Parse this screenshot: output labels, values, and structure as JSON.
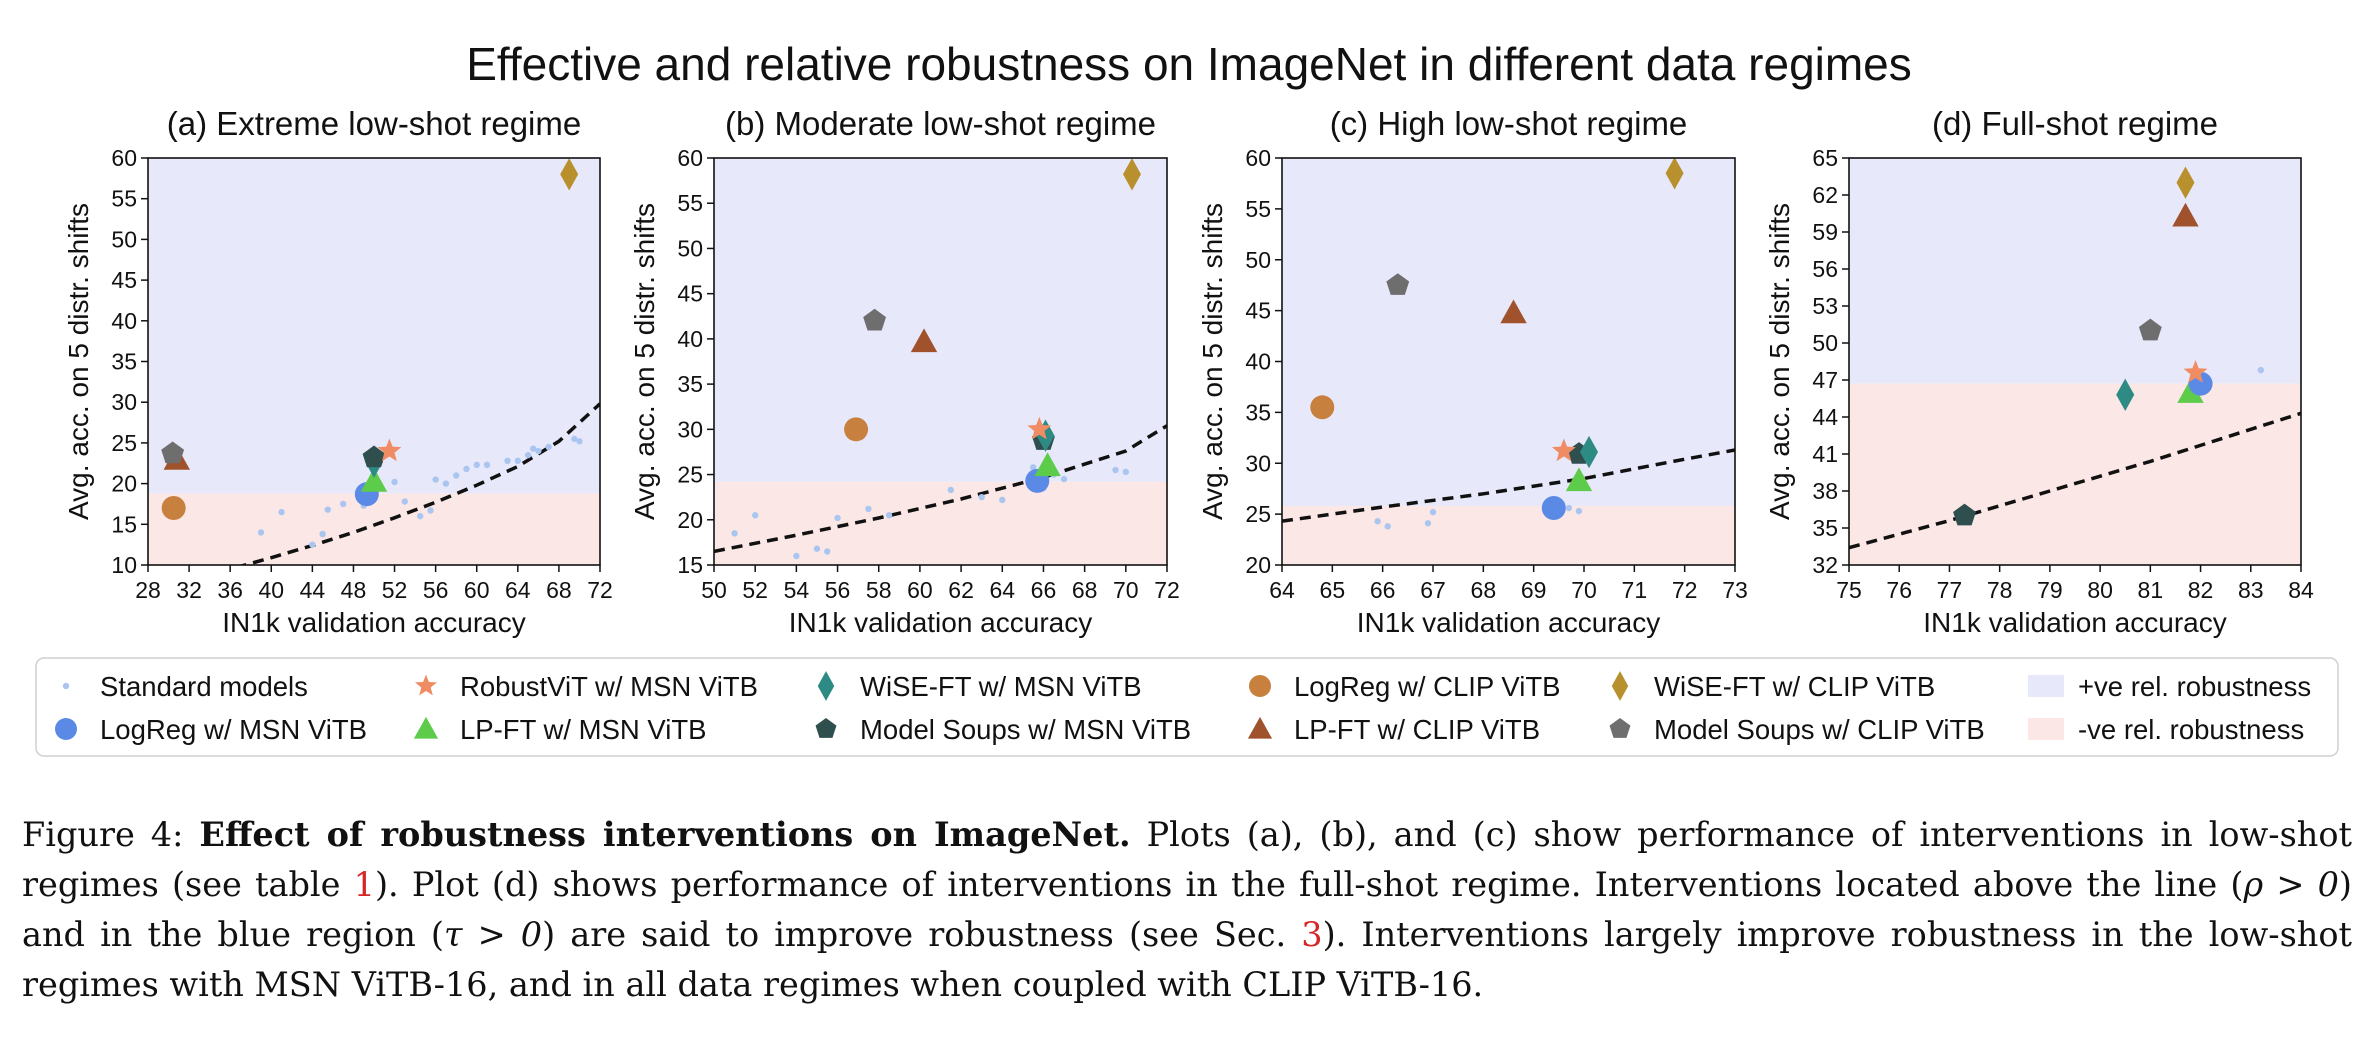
{
  "figure_title": "Effective and relative robustness on ImageNet in different data regimes",
  "chart_data": [
    {
      "type": "scatter",
      "title": "(a) Extreme low-shot regime",
      "xlabel": "IN1k validation accuracy",
      "ylabel": "Avg. acc. on 5 distr. shifts",
      "xlim": [
        28,
        72
      ],
      "ylim": [
        10,
        60
      ],
      "xticks": [
        28,
        32,
        36,
        40,
        44,
        48,
        52,
        56,
        60,
        64,
        68,
        72
      ],
      "yticks": [
        10,
        15,
        20,
        25,
        30,
        35,
        40,
        45,
        50,
        55,
        60
      ],
      "baseline_y": 18.8,
      "fit_curve": [
        [
          28,
          7.2
        ],
        [
          32,
          8.3
        ],
        [
          36,
          9.5
        ],
        [
          40,
          10.9
        ],
        [
          44,
          12.4
        ],
        [
          48,
          14.0
        ],
        [
          52,
          15.8
        ],
        [
          56,
          17.7
        ],
        [
          60,
          19.8
        ],
        [
          64,
          22.1
        ],
        [
          68,
          25.2
        ],
        [
          72,
          29.8
        ]
      ],
      "standard_models": [
        [
          39,
          14
        ],
        [
          41,
          16.5
        ],
        [
          44,
          12.5
        ],
        [
          45,
          13.8
        ],
        [
          45.5,
          16.8
        ],
        [
          47,
          17.5
        ],
        [
          49,
          17.3
        ],
        [
          50.5,
          19.5
        ],
        [
          52,
          20.2
        ],
        [
          53,
          17.8
        ],
        [
          54.5,
          16
        ],
        [
          55.5,
          16.7
        ],
        [
          56,
          20.5
        ],
        [
          57,
          20
        ],
        [
          58,
          21
        ],
        [
          59,
          21.8
        ],
        [
          60,
          22.3
        ],
        [
          61,
          22.3
        ],
        [
          63,
          22.8
        ],
        [
          64,
          22.8
        ],
        [
          65,
          23.5
        ],
        [
          65.5,
          24.3
        ],
        [
          66,
          24
        ],
        [
          67,
          24.5
        ],
        [
          69.5,
          25.5
        ],
        [
          70,
          25.2
        ]
      ],
      "interventions": [
        {
          "series": "LogReg w/ MSN ViTB",
          "x": 49.3,
          "y": 18.7
        },
        {
          "series": "LP-FT w/ MSN ViTB",
          "x": 50.0,
          "y": 20.3
        },
        {
          "series": "WiSE-FT w/ MSN ViTB",
          "x": 50.0,
          "y": 22.7
        },
        {
          "series": "Model Soups w/ MSN ViTB",
          "x": 50.0,
          "y": 23.2
        },
        {
          "series": "RobustViT w/ MSN ViTB",
          "x": 51.5,
          "y": 24.0
        },
        {
          "series": "LogReg w/ CLIP ViTB",
          "x": 30.5,
          "y": 17.0
        },
        {
          "series": "LP-FT w/ CLIP ViTB",
          "x": 30.8,
          "y": 23.0
        },
        {
          "series": "Model Soups w/ CLIP ViTB",
          "x": 30.4,
          "y": 23.7
        },
        {
          "series": "WiSE-FT w/ CLIP ViTB",
          "x": 69.0,
          "y": 58.0
        }
      ]
    },
    {
      "type": "scatter",
      "title": "(b) Moderate low-shot regime",
      "xlabel": "IN1k validation accuracy",
      "ylabel": "Avg. acc. on 5 distr. shifts",
      "xlim": [
        50,
        72
      ],
      "ylim": [
        15,
        60
      ],
      "xticks": [
        50,
        52,
        54,
        56,
        58,
        60,
        62,
        64,
        66,
        68,
        70,
        72
      ],
      "yticks": [
        15,
        20,
        25,
        30,
        35,
        40,
        45,
        50,
        55,
        60
      ],
      "baseline_y": 24.2,
      "fit_curve": [
        [
          50,
          16.5
        ],
        [
          54,
          18.3
        ],
        [
          58,
          20.2
        ],
        [
          62,
          22.3
        ],
        [
          66,
          24.7
        ],
        [
          70,
          27.6
        ],
        [
          72,
          30.4
        ]
      ],
      "standard_models": [
        [
          51,
          18.5
        ],
        [
          52,
          20.5
        ],
        [
          54,
          16
        ],
        [
          55,
          16.8
        ],
        [
          55.5,
          16.5
        ],
        [
          56,
          20.2
        ],
        [
          57.5,
          21.2
        ],
        [
          58.5,
          20.5
        ],
        [
          61.5,
          23.3
        ],
        [
          63,
          22.5
        ],
        [
          64,
          22.2
        ],
        [
          65.5,
          25.8
        ],
        [
          66,
          23.5
        ],
        [
          66.5,
          25
        ],
        [
          67,
          24.5
        ],
        [
          69.5,
          25.5
        ],
        [
          70,
          25.3
        ]
      ],
      "interventions": [
        {
          "series": "LogReg w/ MSN ViTB",
          "x": 65.7,
          "y": 24.3
        },
        {
          "series": "LP-FT w/ MSN ViTB",
          "x": 66.2,
          "y": 26.0
        },
        {
          "series": "Model Soups w/ MSN ViTB",
          "x": 66.0,
          "y": 28.8
        },
        {
          "series": "WiSE-FT w/ MSN ViTB",
          "x": 66.1,
          "y": 29.3
        },
        {
          "series": "RobustViT w/ MSN ViTB",
          "x": 65.8,
          "y": 30.0
        },
        {
          "series": "LogReg w/ CLIP ViTB",
          "x": 56.9,
          "y": 30.0
        },
        {
          "series": "Model Soups w/ CLIP ViTB",
          "x": 57.8,
          "y": 42.0
        },
        {
          "series": "LP-FT w/ CLIP ViTB",
          "x": 60.2,
          "y": 39.7
        },
        {
          "series": "WiSE-FT w/ CLIP ViTB",
          "x": 70.3,
          "y": 58.2
        }
      ]
    },
    {
      "type": "scatter",
      "title": "(c) High low-shot regime",
      "xlabel": "IN1k validation accuracy",
      "ylabel": "Avg. acc. on 5 distr. shifts",
      "xlim": [
        64,
        73
      ],
      "ylim": [
        20,
        60
      ],
      "xticks": [
        64,
        65,
        66,
        67,
        68,
        69,
        70,
        71,
        72,
        73
      ],
      "yticks": [
        20,
        25,
        30,
        35,
        40,
        45,
        50,
        55,
        60
      ],
      "baseline_y": 25.8,
      "fit_curve": [
        [
          64,
          24.3
        ],
        [
          66,
          25.7
        ],
        [
          68,
          27.0
        ],
        [
          70,
          28.5
        ],
        [
          72,
          30.4
        ],
        [
          73,
          31.3
        ]
      ],
      "standard_models": [
        [
          65.9,
          24.3
        ],
        [
          66.1,
          23.8
        ],
        [
          66.9,
          24.1
        ],
        [
          67,
          25.2
        ],
        [
          69.9,
          25.3
        ],
        [
          69.7,
          25.6
        ]
      ],
      "interventions": [
        {
          "series": "LogReg w/ MSN ViTB",
          "x": 69.4,
          "y": 25.6
        },
        {
          "series": "LP-FT w/ MSN ViTB",
          "x": 69.9,
          "y": 28.3
        },
        {
          "series": "Model Soups w/ MSN ViTB",
          "x": 69.9,
          "y": 30.9
        },
        {
          "series": "WiSE-FT w/ MSN ViTB",
          "x": 70.1,
          "y": 31.1
        },
        {
          "series": "RobustViT w/ MSN ViTB",
          "x": 69.6,
          "y": 31.2
        },
        {
          "series": "LogReg w/ CLIP ViTB",
          "x": 64.8,
          "y": 35.5
        },
        {
          "series": "LP-FT w/ CLIP ViTB",
          "x": 68.6,
          "y": 44.8
        },
        {
          "series": "Model Soups w/ CLIP ViTB",
          "x": 66.3,
          "y": 47.5
        },
        {
          "series": "WiSE-FT w/ CLIP ViTB",
          "x": 71.8,
          "y": 58.5
        }
      ]
    },
    {
      "type": "scatter",
      "title": "(d) Full-shot regime",
      "xlabel": "IN1k validation accuracy",
      "ylabel": "Avg. acc. on 5 distr. shifts",
      "xlim": [
        75,
        84
      ],
      "ylim": [
        32,
        65
      ],
      "xticks": [
        75,
        76,
        77,
        78,
        79,
        80,
        81,
        82,
        83,
        84
      ],
      "yticks": [
        32,
        35,
        38,
        41,
        44,
        47,
        50,
        53,
        56,
        59,
        62,
        65
      ],
      "baseline_y": 46.7,
      "fit_curve": [
        [
          75,
          33.4
        ],
        [
          77,
          35.6
        ],
        [
          79,
          38.0
        ],
        [
          81,
          40.4
        ],
        [
          83,
          43.0
        ],
        [
          84,
          44.3
        ]
      ],
      "standard_models": [
        [
          83.2,
          47.8
        ]
      ],
      "interventions": [
        {
          "series": "Model Soups w/ MSN ViTB",
          "x": 77.3,
          "y": 36.0
        },
        {
          "series": "WiSE-FT w/ MSN ViTB",
          "x": 80.5,
          "y": 45.8
        },
        {
          "series": "LP-FT w/ MSN ViTB",
          "x": 81.8,
          "y": 46.0
        },
        {
          "series": "LogReg w/ MSN ViTB",
          "x": 82.0,
          "y": 46.7
        },
        {
          "series": "RobustViT w/ MSN ViTB",
          "x": 81.9,
          "y": 47.6
        },
        {
          "series": "Model Soups w/ CLIP ViTB",
          "x": 81.0,
          "y": 51.0
        },
        {
          "series": "LP-FT w/ CLIP ViTB",
          "x": 81.7,
          "y": 60.3
        },
        {
          "series": "WiSE-FT w/ CLIP ViTB",
          "x": 81.7,
          "y": 63.0
        }
      ]
    }
  ],
  "series_styles": {
    "Standard models": {
      "shape": "dot",
      "color": "#aac6f0"
    },
    "LogReg w/ MSN ViTB": {
      "shape": "circle",
      "color": "#5b8ae6"
    },
    "RobustViT w/ MSN ViTB": {
      "shape": "star",
      "color": "#f08c64"
    },
    "LP-FT w/ MSN ViTB": {
      "shape": "triangle",
      "color": "#5dcc4b"
    },
    "WiSE-FT w/ MSN ViTB": {
      "shape": "diamond",
      "color": "#2e8b84"
    },
    "Model Soups w/ MSN ViTB": {
      "shape": "pentagon",
      "color": "#2f4f4f"
    },
    "LogReg w/ CLIP ViTB": {
      "shape": "circle",
      "color": "#c8803e"
    },
    "LP-FT w/ CLIP ViTB": {
      "shape": "triangle",
      "color": "#a0522d"
    },
    "WiSE-FT w/ CLIP ViTB": {
      "shape": "diamond",
      "color": "#b8912e"
    },
    "Model Soups w/ CLIP ViTB": {
      "shape": "pentagon",
      "color": "#6e6e6e"
    }
  },
  "region_colors": {
    "positive": "#e8e8fb",
    "negative": "#fbe7e5"
  },
  "legend": [
    {
      "label": "Standard models",
      "series": "Standard models"
    },
    {
      "label": "LogReg w/ MSN ViTB",
      "series": "LogReg w/ MSN ViTB"
    },
    {
      "label": "RobustViT w/ MSN ViTB",
      "series": "RobustViT w/ MSN ViTB"
    },
    {
      "label": "LP-FT w/ MSN ViTB",
      "series": "LP-FT w/ MSN ViTB"
    },
    {
      "label": "WiSE-FT w/ MSN ViTB",
      "series": "WiSE-FT w/ MSN ViTB"
    },
    {
      "label": "Model Soups w/ MSN ViTB",
      "series": "Model Soups w/ MSN ViTB"
    },
    {
      "label": "LogReg w/ CLIP ViTB",
      "series": "LogReg w/ CLIP ViTB"
    },
    {
      "label": "LP-FT w/ CLIP ViTB",
      "series": "LP-FT w/ CLIP ViTB"
    },
    {
      "label": "WiSE-FT w/ CLIP ViTB",
      "series": "WiSE-FT w/ CLIP ViTB"
    },
    {
      "label": "Model Soups w/ CLIP ViTB",
      "series": "Model Soups w/ CLIP ViTB"
    },
    {
      "label": "+ve rel. robustness",
      "region": "positive"
    },
    {
      "label": "-ve rel. robustness",
      "region": "negative"
    }
  ],
  "caption": {
    "label": "Figure 4:",
    "bold": "Effect of robustness interventions on ImageNet.",
    "part1": " Plots (a), (b), and (c) show performance of interventions in low-shot regimes (see table ",
    "ref1": "1",
    "part2": "). Plot (d) shows performance of interventions in the full-shot regime. Interventions located above the line (",
    "math1": "ρ > 0",
    "part3": ") and in the blue region (",
    "math2": "τ > 0",
    "part4": ") are said to improve robustness (see Sec. ",
    "ref2": "3",
    "part5": "). Interventions largely improve robustness in the low-shot regimes with MSN ViTB-16, and in all data regimes when coupled with CLIP ViTB-16."
  }
}
